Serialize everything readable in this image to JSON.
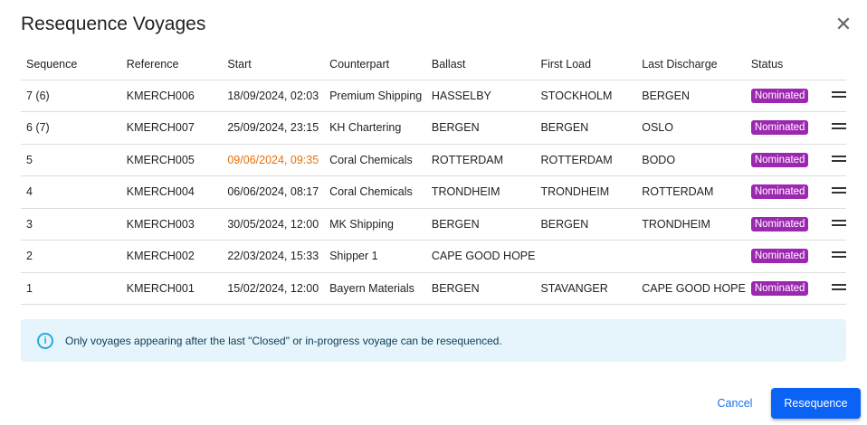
{
  "dialog": {
    "title": "Resequence Voyages",
    "close_icon": "close-icon"
  },
  "table": {
    "headers": [
      "Sequence",
      "Reference",
      "Start",
      "Counterpart",
      "Ballast",
      "First Load",
      "Last Discharge",
      "Status",
      ""
    ],
    "rows": [
      {
        "sequence": "7 (6)",
        "reference": "KMERCH006",
        "start": "18/09/2024, 02:03",
        "start_warning": false,
        "counterpart": "Premium Shipping",
        "ballast": "HASSELBY",
        "first_load": "STOCKHOLM",
        "last_discharge": "BERGEN",
        "status": "Nominated"
      },
      {
        "sequence": "6 (7)",
        "reference": "KMERCH007",
        "start": "25/09/2024, 23:15",
        "start_warning": false,
        "counterpart": "KH Chartering",
        "ballast": "BERGEN",
        "first_load": "BERGEN",
        "last_discharge": "OSLO",
        "status": "Nominated"
      },
      {
        "sequence": "5",
        "reference": "KMERCH005",
        "start": "09/06/2024, 09:35",
        "start_warning": true,
        "counterpart": "Coral Chemicals",
        "ballast": "ROTTERDAM",
        "first_load": "ROTTERDAM",
        "last_discharge": "BODO",
        "status": "Nominated"
      },
      {
        "sequence": "4",
        "reference": "KMERCH004",
        "start": "06/06/2024, 08:17",
        "start_warning": false,
        "counterpart": "Coral Chemicals",
        "ballast": "TRONDHEIM",
        "first_load": "TRONDHEIM",
        "last_discharge": "ROTTERDAM",
        "status": "Nominated"
      },
      {
        "sequence": "3",
        "reference": "KMERCH003",
        "start": "30/05/2024, 12:00",
        "start_warning": false,
        "counterpart": "MK Shipping",
        "ballast": "BERGEN",
        "first_load": "BERGEN",
        "last_discharge": "TRONDHEIM",
        "status": "Nominated"
      },
      {
        "sequence": "2",
        "reference": "KMERCH002",
        "start": "22/03/2024, 15:33",
        "start_warning": false,
        "counterpart": "Shipper 1",
        "ballast": "CAPE GOOD HOPE",
        "first_load": "",
        "last_discharge": "",
        "status": "Nominated"
      },
      {
        "sequence": "1",
        "reference": "KMERCH001",
        "start": "15/02/2024, 12:00",
        "start_warning": false,
        "counterpart": "Bayern Materials",
        "ballast": "BERGEN",
        "first_load": "STAVANGER",
        "last_discharge": "CAPE GOOD HOPE",
        "status": "Nominated"
      }
    ]
  },
  "info": {
    "text": "Only voyages appearing after the last \"Closed\" or in-progress voyage can be resequenced."
  },
  "actions": {
    "cancel": "Cancel",
    "resequence": "Resequence"
  },
  "colors": {
    "status_badge": "#9c27b0",
    "warning_date": "#e8710a",
    "primary": "#0b63f6",
    "info_bg": "#e5f5fb"
  }
}
